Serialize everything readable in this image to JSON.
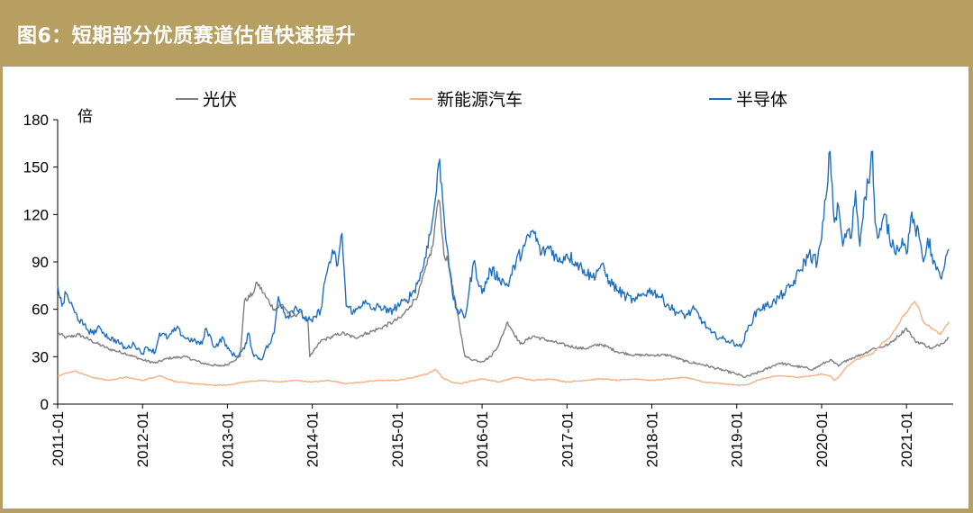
{
  "header": {
    "title": "图6：短期部分优质赛道估值快速提升"
  },
  "colors": {
    "header_bg": "#b79f62",
    "pv": "#7f7f7f",
    "nev": "#f4b183",
    "semi": "#1f6fc0"
  },
  "chart_data": {
    "type": "line",
    "title": "图6：短期部分优质赛道估值快速提升",
    "ylabel": "倍",
    "ylim": [
      0,
      180
    ],
    "yticks": [
      0,
      30,
      60,
      90,
      120,
      150,
      180
    ],
    "xlim": [
      2011.0,
      2021.55
    ],
    "xticks": [
      "2011-01",
      "2012-01",
      "2013-01",
      "2014-01",
      "2015-01",
      "2016-01",
      "2017-01",
      "2018-01",
      "2019-01",
      "2020-01",
      "2021-01"
    ],
    "legend_position": "top",
    "series": [
      {
        "name": "光伏",
        "color": "#7f7f7f",
        "x": [
          2011.0,
          2011.1,
          2011.25,
          2011.4,
          2011.6,
          2011.8,
          2012.0,
          2012.15,
          2012.3,
          2012.5,
          2012.7,
          2012.9,
          2013.0,
          2013.05,
          2013.15,
          2013.2,
          2013.3,
          2013.35,
          2013.45,
          2013.55,
          2013.65,
          2013.75,
          2013.85,
          2013.95,
          2013.97,
          2014.0,
          2014.1,
          2014.2,
          2014.35,
          2014.5,
          2014.65,
          2014.8,
          2014.95,
          2015.05,
          2015.15,
          2015.25,
          2015.35,
          2015.42,
          2015.47,
          2015.5,
          2015.55,
          2015.6,
          2015.63,
          2015.7,
          2015.8,
          2015.9,
          2016.0,
          2016.1,
          2016.2,
          2016.3,
          2016.45,
          2016.6,
          2016.8,
          2017.0,
          2017.2,
          2017.4,
          2017.6,
          2017.8,
          2018.0,
          2018.2,
          2018.4,
          2018.6,
          2018.8,
          2019.0,
          2019.1,
          2019.2,
          2019.3,
          2019.5,
          2019.7,
          2019.9,
          2020.0,
          2020.1,
          2020.2,
          2020.3,
          2020.4,
          2020.5,
          2020.6,
          2020.7,
          2020.8,
          2020.9,
          2021.0,
          2021.05,
          2021.1,
          2021.2,
          2021.3,
          2021.4,
          2021.5
        ],
        "values": [
          45,
          42,
          44,
          40,
          35,
          32,
          28,
          26,
          29,
          30,
          26,
          24,
          25,
          27,
          30,
          65,
          70,
          77,
          68,
          60,
          63,
          55,
          58,
          52,
          30,
          32,
          40,
          42,
          45,
          42,
          45,
          48,
          52,
          55,
          62,
          70,
          88,
          100,
          125,
          128,
          95,
          90,
          80,
          60,
          30,
          28,
          27,
          30,
          38,
          52,
          38,
          43,
          40,
          37,
          35,
          38,
          33,
          31,
          31,
          31,
          27,
          25,
          22,
          19,
          17,
          19,
          21,
          26,
          24,
          22,
          25,
          28,
          24,
          28,
          30,
          32,
          35,
          36,
          38,
          43,
          48,
          44,
          40,
          38,
          35,
          38,
          42
        ]
      },
      {
        "name": "新能源汽车",
        "color": "#f4b183",
        "x": [
          2011.0,
          2011.2,
          2011.4,
          2011.6,
          2011.8,
          2012.0,
          2012.2,
          2012.4,
          2012.6,
          2012.8,
          2013.0,
          2013.2,
          2013.4,
          2013.6,
          2013.8,
          2014.0,
          2014.2,
          2014.4,
          2014.6,
          2014.8,
          2015.0,
          2015.2,
          2015.35,
          2015.45,
          2015.55,
          2015.65,
          2015.75,
          2015.9,
          2016.0,
          2016.2,
          2016.4,
          2016.6,
          2016.8,
          2017.0,
          2017.2,
          2017.4,
          2017.6,
          2017.8,
          2018.0,
          2018.2,
          2018.4,
          2018.6,
          2018.8,
          2019.0,
          2019.1,
          2019.2,
          2019.3,
          2019.5,
          2019.7,
          2019.9,
          2020.0,
          2020.1,
          2020.15,
          2020.2,
          2020.3,
          2020.4,
          2020.5,
          2020.6,
          2020.7,
          2020.8,
          2020.9,
          2020.95,
          2021.0,
          2021.05,
          2021.1,
          2021.15,
          2021.2,
          2021.3,
          2021.4,
          2021.5
        ],
        "values": [
          18,
          21,
          17,
          15,
          17,
          15,
          18,
          14,
          13,
          12,
          12,
          14,
          15,
          14,
          15,
          14,
          15,
          13,
          14,
          15,
          15,
          17,
          19,
          22,
          16,
          14,
          13,
          15,
          16,
          14,
          17,
          15,
          16,
          14,
          15,
          16,
          15,
          16,
          15,
          16,
          17,
          14,
          13,
          12,
          12,
          14,
          16,
          18,
          17,
          18,
          19,
          18,
          15,
          17,
          24,
          28,
          30,
          32,
          38,
          42,
          50,
          55,
          58,
          62,
          65,
          60,
          52,
          48,
          44,
          52
        ]
      },
      {
        "name": "半导体",
        "color": "#1f6fc0",
        "x": [
          2011.0,
          2011.05,
          2011.1,
          2011.2,
          2011.3,
          2011.4,
          2011.5,
          2011.6,
          2011.7,
          2011.8,
          2011.9,
          2012.0,
          2012.05,
          2012.15,
          2012.2,
          2012.3,
          2012.4,
          2012.5,
          2012.6,
          2012.7,
          2012.75,
          2012.85,
          2012.95,
          2013.0,
          2013.1,
          2013.2,
          2013.25,
          2013.3,
          2013.4,
          2013.45,
          2013.5,
          2013.55,
          2013.6,
          2013.7,
          2013.8,
          2013.9,
          2014.0,
          2014.1,
          2014.15,
          2014.2,
          2014.25,
          2014.3,
          2014.35,
          2014.4,
          2014.5,
          2014.6,
          2014.7,
          2014.8,
          2014.9,
          2015.0,
          2015.1,
          2015.2,
          2015.3,
          2015.35,
          2015.4,
          2015.45,
          2015.5,
          2015.55,
          2015.6,
          2015.62,
          2015.65,
          2015.7,
          2015.8,
          2015.9,
          2016.0,
          2016.1,
          2016.2,
          2016.3,
          2016.4,
          2016.5,
          2016.6,
          2016.7,
          2016.8,
          2016.9,
          2017.0,
          2017.1,
          2017.2,
          2017.3,
          2017.4,
          2017.5,
          2017.6,
          2017.7,
          2017.8,
          2017.9,
          2018.0,
          2018.1,
          2018.2,
          2018.3,
          2018.4,
          2018.5,
          2018.6,
          2018.7,
          2018.8,
          2018.9,
          2019.0,
          2019.05,
          2019.15,
          2019.25,
          2019.35,
          2019.45,
          2019.55,
          2019.65,
          2019.75,
          2019.85,
          2019.95,
          2020.0,
          2020.05,
          2020.1,
          2020.15,
          2020.2,
          2020.25,
          2020.3,
          2020.35,
          2020.4,
          2020.45,
          2020.5,
          2020.55,
          2020.6,
          2020.63,
          2020.66,
          2020.7,
          2020.75,
          2020.8,
          2020.85,
          2020.9,
          2020.95,
          2021.0,
          2021.05,
          2021.1,
          2021.15,
          2021.2,
          2021.25,
          2021.3,
          2021.35,
          2021.4,
          2021.45,
          2021.5
        ],
        "values": [
          75,
          62,
          70,
          58,
          50,
          45,
          48,
          42,
          40,
          35,
          38,
          32,
          36,
          33,
          45,
          42,
          48,
          42,
          40,
          38,
          48,
          36,
          42,
          35,
          30,
          35,
          45,
          32,
          28,
          35,
          38,
          45,
          68,
          55,
          62,
          55,
          52,
          60,
          78,
          90,
          95,
          88,
          108,
          62,
          58,
          65,
          60,
          62,
          58,
          62,
          65,
          72,
          85,
          100,
          110,
          130,
          155,
          120,
          95,
          85,
          70,
          60,
          55,
          90,
          70,
          85,
          80,
          75,
          90,
          100,
          110,
          95,
          100,
          90,
          95,
          90,
          85,
          80,
          88,
          78,
          72,
          68,
          65,
          70,
          72,
          68,
          62,
          58,
          56,
          60,
          52,
          45,
          42,
          40,
          38,
          36,
          50,
          60,
          62,
          65,
          70,
          75,
          85,
          95,
          90,
          105,
          130,
          160,
          115,
          125,
          100,
          110,
          105,
          135,
          100,
          130,
          140,
          160,
          115,
          105,
          110,
          120,
          105,
          100,
          98,
          105,
          95,
          118,
          112,
          105,
          90,
          105,
          95,
          85,
          80,
          88,
          98
        ]
      }
    ]
  }
}
